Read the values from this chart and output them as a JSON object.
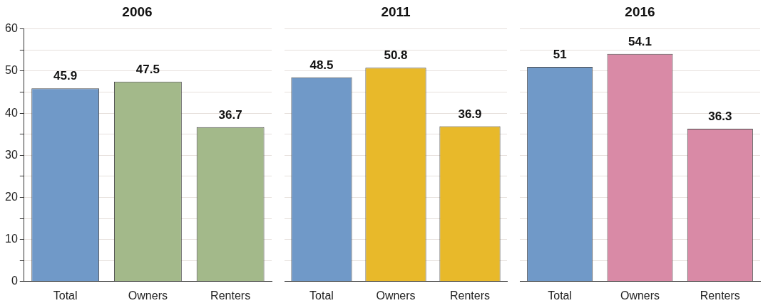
{
  "chart_data": [
    {
      "type": "bar",
      "title": "2006",
      "categories": [
        "Total",
        "Owners",
        "Renters"
      ],
      "values": [
        45.9,
        47.5,
        36.7
      ],
      "colors": [
        "#7099c8",
        "#a3b98a",
        "#a3b98a"
      ],
      "ylim": [
        0,
        60
      ],
      "yticks": [
        0,
        {
          "value": 5,
          "label": null
        },
        10,
        {
          "value": 15,
          "label": null
        },
        20,
        {
          "value": 25,
          "label": null
        },
        30,
        {
          "value": 35,
          "label": null
        },
        40,
        {
          "value": 45,
          "label": null
        },
        50,
        {
          "value": 55,
          "label": null
        },
        60
      ],
      "grid": "y",
      "data_labels": true
    },
    {
      "type": "bar",
      "title": "2011",
      "categories": [
        "Total",
        "Owners",
        "Renters"
      ],
      "values": [
        48.5,
        50.8,
        36.9
      ],
      "colors": [
        "#7099c8",
        "#e8b92a",
        "#e8b92a"
      ],
      "ylim": [
        0,
        60
      ],
      "yticks": [
        0,
        {
          "value": 5,
          "label": null
        },
        10,
        {
          "value": 15,
          "label": null
        },
        20,
        {
          "value": 25,
          "label": null
        },
        30,
        {
          "value": 35,
          "label": null
        },
        40,
        {
          "value": 45,
          "label": null
        },
        50,
        {
          "value": 55,
          "label": null
        },
        60
      ],
      "grid": "y",
      "data_labels": true,
      "tick_labels": "x"
    },
    {
      "type": "bar",
      "title": "2016",
      "categories": [
        "Total",
        "Owners",
        "Renters"
      ],
      "values": [
        51,
        54.1,
        36.3
      ],
      "colors": [
        "#7099c8",
        "#d98aa6",
        "#d98aa6"
      ],
      "ylim": [
        0,
        60
      ],
      "yticks": [
        0,
        {
          "value": 5,
          "label": null
        },
        10,
        {
          "value": 15,
          "label": null
        },
        20,
        {
          "value": 25,
          "label": null
        },
        30,
        {
          "value": 35,
          "label": null
        },
        40,
        {
          "value": 45,
          "label": null
        },
        50,
        {
          "value": 55,
          "label": null
        },
        60
      ],
      "grid": "y",
      "data_labels": true,
      "tick_labels": "x"
    }
  ]
}
